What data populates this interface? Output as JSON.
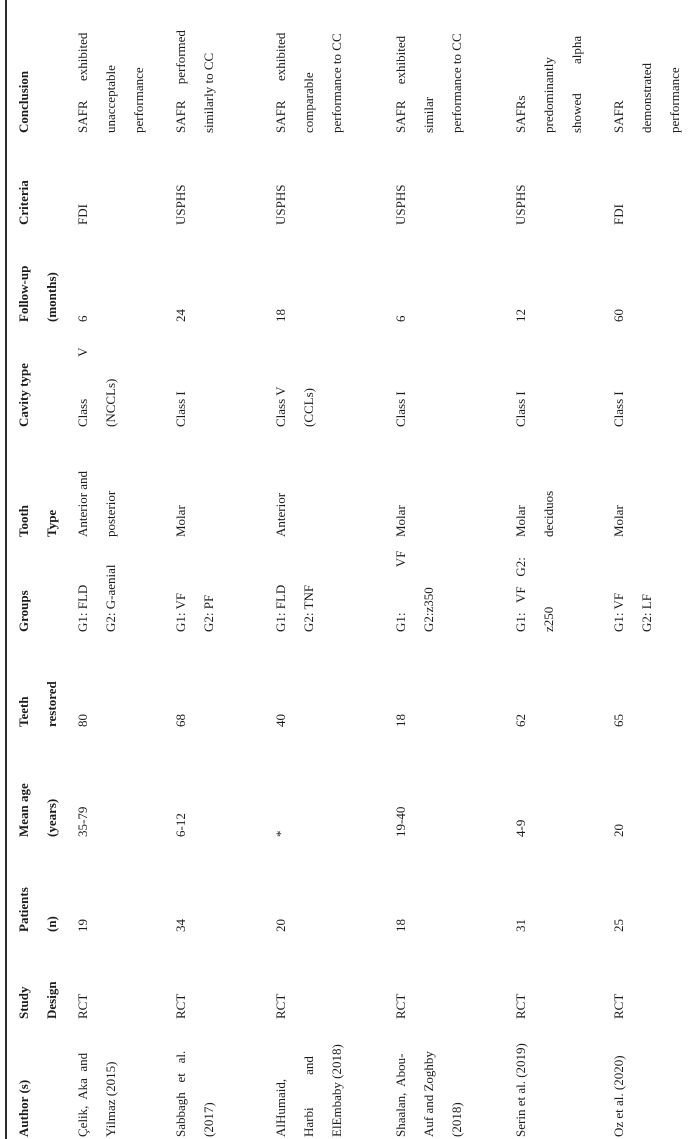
{
  "colors": {
    "background": "#ffffff",
    "text": "#1c1c1c",
    "rule": "#2b2b2b"
  },
  "table": {
    "header": {
      "author": "Author (s)",
      "study_design": "Study\nDesign",
      "patients": "Patients\n(n)",
      "mean_age": "Mean age\n(years)",
      "teeth_restored": "Teeth\nrestored",
      "groups": "Groups",
      "tooth_type": "Tooth\nType",
      "cavity_type": "Cavity type",
      "follow_up": "Follow-up\n(months)",
      "criteria": "Criteria",
      "conclusion": "Conclusion"
    },
    "rows": [
      {
        "author": "Çelik,  Aka  and\nYilmaz (2015)",
        "study_design": "RCT",
        "patients": "19",
        "mean_age": "35-79",
        "teeth_restored": "80",
        "groups": "G1: FLD\nG2: G-aenial",
        "tooth_type": "Anterior and\nposterior",
        "cavity_type": "Class             V\n(NCCLs)",
        "follow_up": "6",
        "criteria": "FDI",
        "conclusion": "SAFR      exhibited\nunacceptable\nperformance"
      },
      {
        "author": "Sabbagh   et   al.\n(2017)",
        "study_design": "RCT",
        "patients": "34",
        "mean_age": "6-12",
        "teeth_restored": "68",
        "groups": "G1: VF\nG2: PF",
        "tooth_type": "Molar",
        "cavity_type": "Class I",
        "follow_up": "24",
        "criteria": "USPHS",
        "conclusion": "SAFR     performed\nsimilarly to CC"
      },
      {
        "author": "AlHumaid,\nHarbi          and\nElEmbaby (2018)",
        "study_design": "RCT",
        "patients": "20",
        "mean_age": "*",
        "teeth_restored": "40",
        "groups": "G1: FLD\nG2: TNF",
        "tooth_type": "Anterior",
        "cavity_type": "Class V\n(CCLs)",
        "follow_up": "18",
        "criteria": "USPHS",
        "conclusion": "SAFR      exhibited\ncomparable\nperformance to CC"
      },
      {
        "author": "Shaalan,  Abou-\nAuf and Zoghby\n(2018)",
        "study_design": "RCT",
        "patients": "18",
        "mean_age": "19-40",
        "teeth_restored": "18",
        "groups": "G1:              VF\nG2:z350",
        "tooth_type": "Molar",
        "cavity_type": "Class I",
        "follow_up": "6",
        "criteria": "USPHS",
        "conclusion": "SAFR     exhibited\nsimilar\nperformance to CC"
      },
      {
        "author": "Serin et al. (2019)",
        "study_design": "RCT",
        "patients": "31",
        "mean_age": "4-9",
        "teeth_restored": "62",
        "groups": "G1:   VF   G2:\nz250",
        "tooth_type": "Molar\ndeciduos",
        "cavity_type": "Class I",
        "follow_up": "12",
        "criteria": "USPHS",
        "conclusion": "SAFRs\npredominantly\nshowed         alpha"
      },
      {
        "author": "Oz et al. (2020)",
        "study_design": "RCT",
        "patients": "25",
        "mean_age": "20",
        "teeth_restored": "65",
        "groups": "G1: VF\nG2: LF",
        "tooth_type": "Molar",
        "cavity_type": "Class I",
        "follow_up": "60",
        "criteria": "FDI",
        "conclusion": "SAFR\ndemonstrated\nperformance"
      }
    ]
  }
}
